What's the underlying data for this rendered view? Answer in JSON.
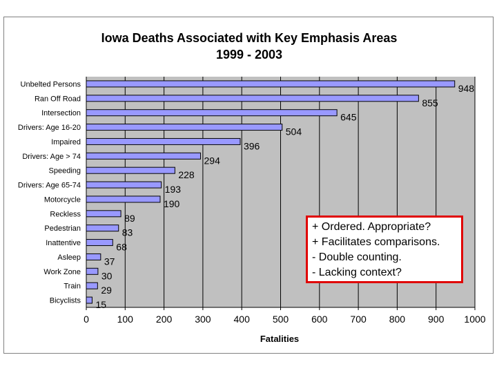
{
  "chart_data": {
    "type": "bar",
    "orientation": "horizontal",
    "title": "Iowa Deaths Associated with Key Emphasis Areas",
    "subtitle": "1999 - 2003",
    "xlabel": "Fatalities",
    "ylabel": "",
    "xlim": [
      0,
      1000
    ],
    "xticks": [
      0,
      100,
      200,
      300,
      400,
      500,
      600,
      700,
      800,
      900,
      1000
    ],
    "grid": true,
    "legend": "none",
    "categories": [
      "Unbelted Persons",
      "Ran Off Road",
      "Intersection",
      "Drivers:  Age 16-20",
      "Impaired",
      "Drivers:  Age > 74",
      "Speeding",
      "Drivers:  Age 65-74",
      "Motorcycle",
      "Reckless",
      "Pedestrian",
      "Inattentive",
      "Asleep",
      "Work Zone",
      "Train",
      "Bicyclists"
    ],
    "values": [
      948,
      855,
      645,
      504,
      396,
      294,
      228,
      193,
      190,
      89,
      83,
      68,
      37,
      30,
      29,
      15
    ]
  },
  "colors": {
    "bar_fill": "#9999ff",
    "plot_background": "#c0c0c0",
    "note_border": "#e00000"
  },
  "annotation": {
    "lines": [
      "+ Ordered.  Appropriate?",
      "+ Facilitates comparisons.",
      "- Double counting.",
      "- Lacking context?"
    ]
  }
}
